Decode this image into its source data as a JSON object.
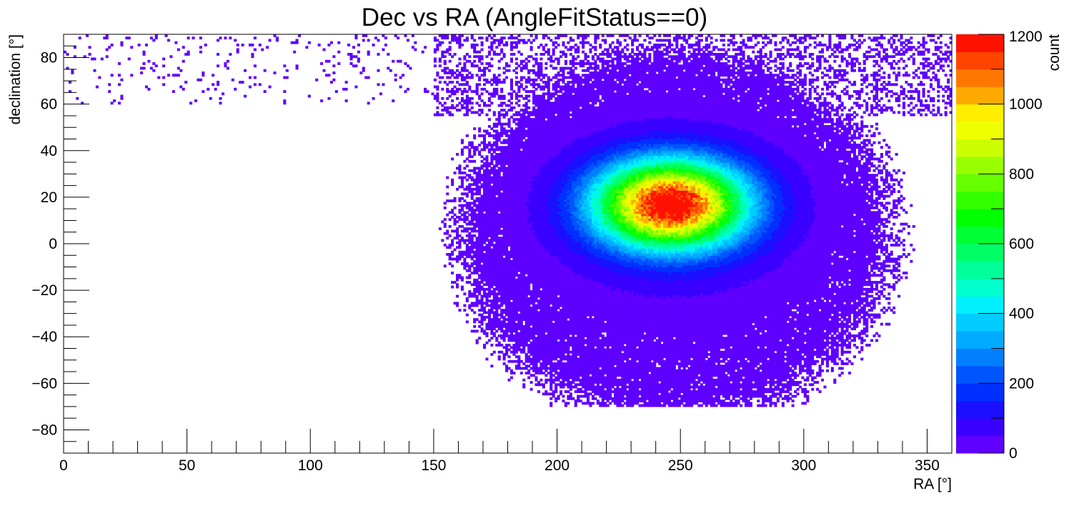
{
  "chart_data": {
    "type": "heatmap",
    "title": "Dec vs RA (AngleFitStatus==0)",
    "xlabel": "RA [°]",
    "ylabel": "declination [°]",
    "zlabel": "count",
    "xlim": [
      0,
      360
    ],
    "ylim": [
      -90,
      90
    ],
    "zlim": [
      0,
      1200
    ],
    "x_ticks": [
      0,
      50,
      100,
      150,
      200,
      250,
      300,
      350
    ],
    "y_ticks": [
      -80,
      -60,
      -40,
      -20,
      0,
      20,
      40,
      60,
      80
    ],
    "z_ticks": [
      0,
      200,
      400,
      600,
      800,
      1000,
      1200
    ],
    "grid": false,
    "palette": [
      "#5f00ff",
      "#3a00ff",
      "#1a10ff",
      "#0030ff",
      "#0055ff",
      "#0080ff",
      "#00aaff",
      "#00ccff",
      "#00f0ff",
      "#00ffcc",
      "#00ff99",
      "#00ff66",
      "#00ff33",
      "#00ff00",
      "#33ff00",
      "#66ff00",
      "#99ff00",
      "#ccff00",
      "#eeff00",
      "#ffee00",
      "#ffaa00",
      "#ff7700",
      "#ff4400",
      "#ff1100"
    ],
    "distribution": {
      "peak": {
        "ra": 246,
        "dec": 17,
        "count": 1200
      },
      "core_width": {
        "ra_sigma": 21,
        "dec_sigma": 13
      },
      "occupied_region": {
        "ra_range": [
          150,
          360
        ],
        "dec_range": [
          -70,
          90
        ]
      },
      "sparse_high_dec_band": {
        "ra_range": [
          0,
          150
        ],
        "dec_range": [
          60,
          90
        ]
      }
    }
  }
}
